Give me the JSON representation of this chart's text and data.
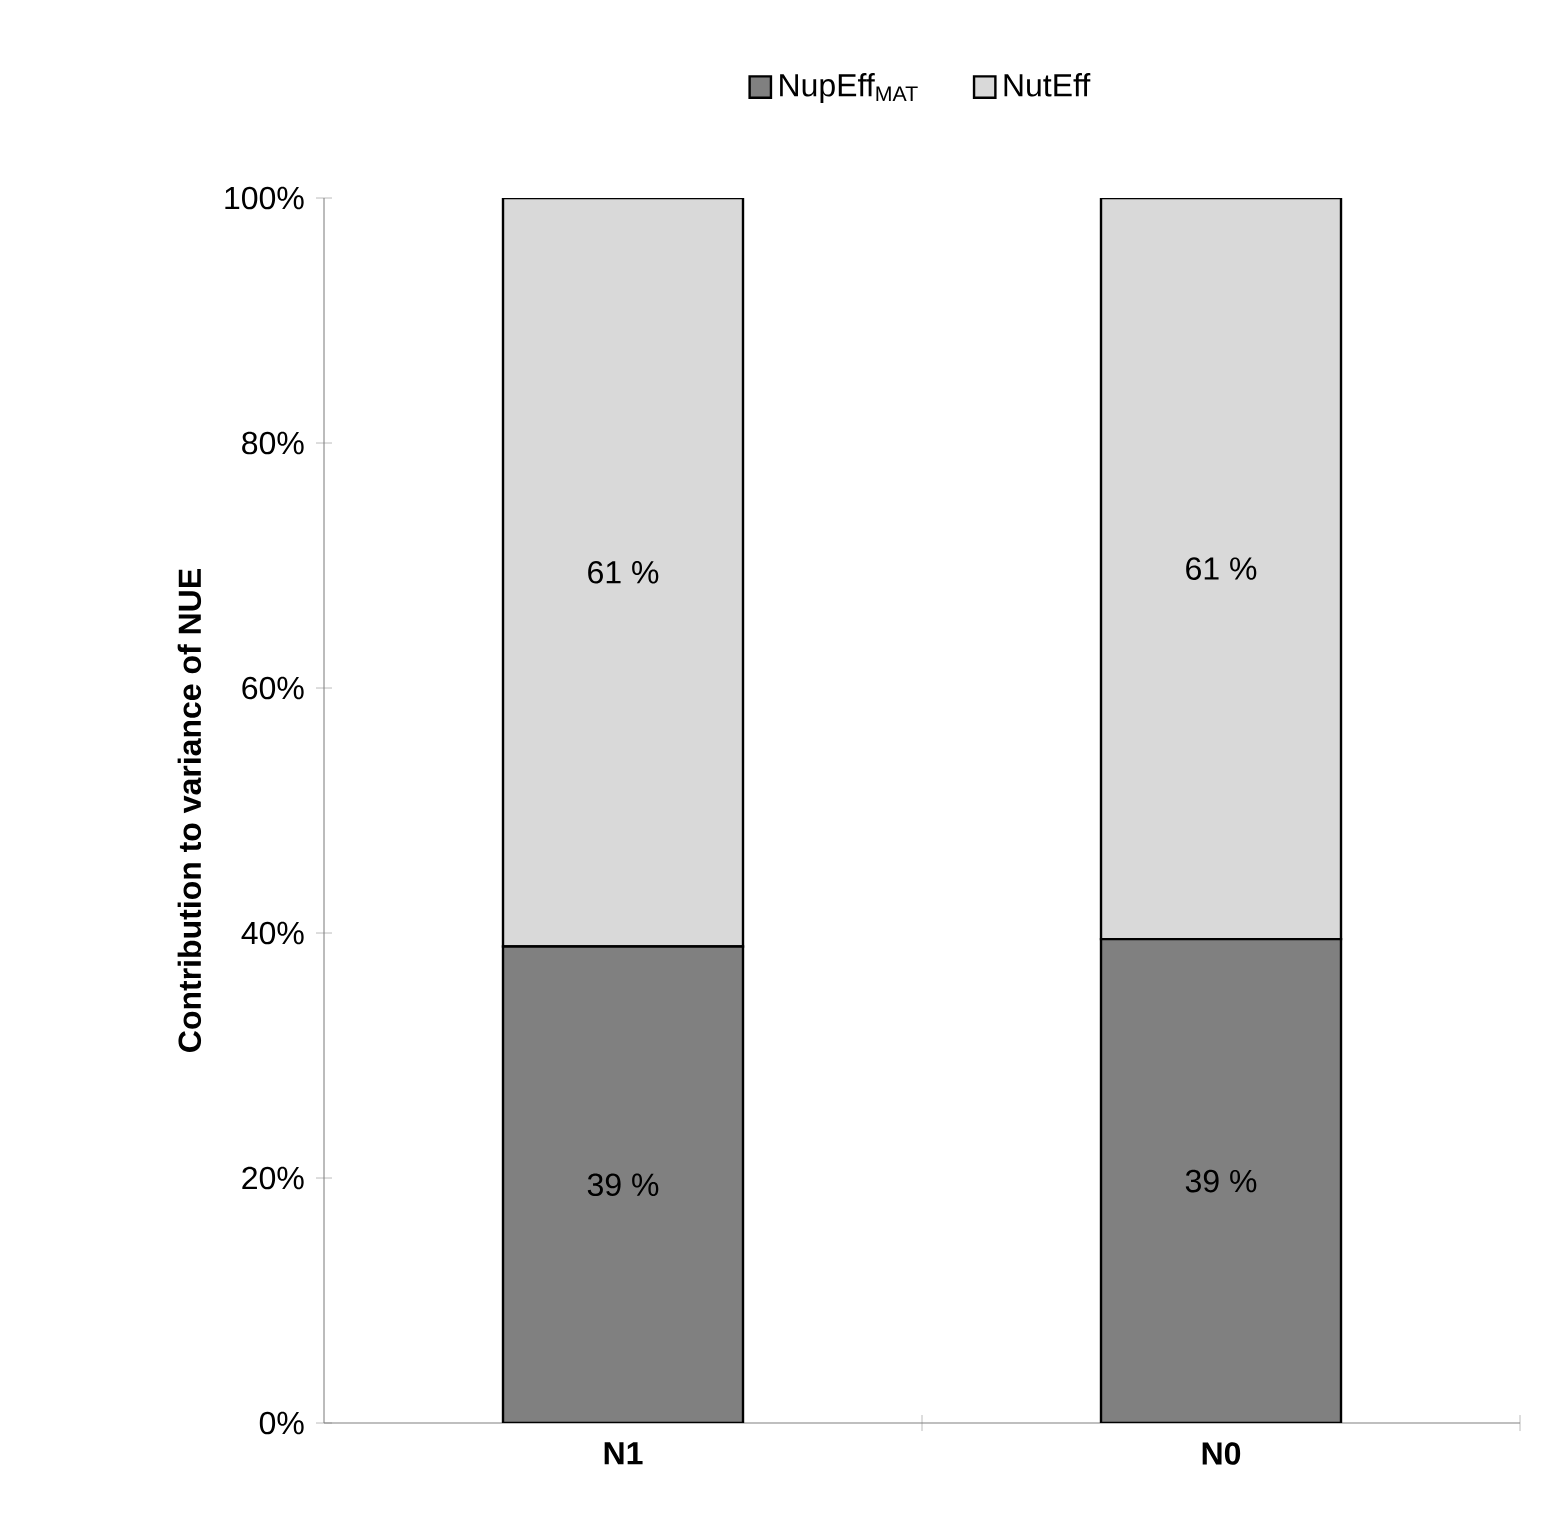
{
  "chart_data": {
    "type": "bar",
    "stacked": true,
    "ylabel": "Contribution to variance of NUE",
    "categories": [
      "N1",
      "N0"
    ],
    "series": [
      {
        "name": "NupEff$_{MAT}$",
        "color": "#808080",
        "values": [
          38.9,
          39.5
        ],
        "value_labels": [
          "39 %",
          "39 %"
        ]
      },
      {
        "name": "NutEff",
        "color": "#d9d9d9",
        "values": [
          61.1,
          60.5
        ],
        "value_labels": [
          "61 %",
          "61 %"
        ]
      }
    ],
    "ylim": [
      0,
      100
    ],
    "yticks": [
      {
        "value": 0,
        "label": "0%"
      },
      {
        "value": 20,
        "label": "20%"
      },
      {
        "value": 40,
        "label": "40%"
      },
      {
        "value": 60,
        "label": "60%"
      },
      {
        "value": 80,
        "label": "80%"
      },
      {
        "value": 100,
        "label": "100%"
      }
    ],
    "legend": "top",
    "grid": false
  }
}
